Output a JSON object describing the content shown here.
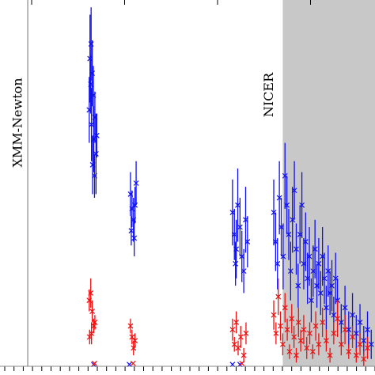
{
  "chart_data": {
    "type": "scatter",
    "title": "",
    "xlabel": "",
    "ylabel": "",
    "xlim": [
      0,
      100
    ],
    "ylim": [
      0,
      100
    ],
    "grid": false,
    "shaded_region": {
      "x_from": 75.4,
      "x_to": 100,
      "color": "#c8c8c8"
    },
    "annotations": [
      {
        "text": "XMM-Newton",
        "x": 4.5,
        "line_x": 7.4
      },
      {
        "text": "NICER",
        "x": 71.5
      }
    ],
    "series": [
      {
        "color": "#1010ee",
        "points": [
          {
            "x": 24.0,
            "y": 84,
            "e": 12
          },
          {
            "x": 24.3,
            "y": 88,
            "e": 10
          },
          {
            "x": 24.6,
            "y": 80,
            "e": 9
          },
          {
            "x": 24.9,
            "y": 74,
            "e": 8
          },
          {
            "x": 23.8,
            "y": 70,
            "e": 9
          },
          {
            "x": 24.4,
            "y": 66,
            "e": 10
          },
          {
            "x": 25.0,
            "y": 62,
            "e": 9
          },
          {
            "x": 25.3,
            "y": 68,
            "e": 7
          },
          {
            "x": 25.6,
            "y": 58,
            "e": 11
          },
          {
            "x": 24.7,
            "y": 55,
            "e": 8
          },
          {
            "x": 25.2,
            "y": 52,
            "e": 6
          },
          {
            "x": 24.2,
            "y": 77,
            "e": 8
          },
          {
            "x": 25.8,
            "y": 63,
            "e": 6
          },
          {
            "x": 34.8,
            "y": 47,
            "e": 6
          },
          {
            "x": 35.2,
            "y": 43,
            "e": 5
          },
          {
            "x": 35.6,
            "y": 40,
            "e": 6
          },
          {
            "x": 36.0,
            "y": 44,
            "e": 5
          },
          {
            "x": 35.0,
            "y": 37,
            "e": 4
          },
          {
            "x": 36.3,
            "y": 50,
            "e": 6
          },
          {
            "x": 35.8,
            "y": 35,
            "e": 5
          },
          {
            "x": 62.0,
            "y": 42,
            "e": 9
          },
          {
            "x": 62.5,
            "y": 36,
            "e": 7
          },
          {
            "x": 63.0,
            "y": 32,
            "e": 8
          },
          {
            "x": 63.4,
            "y": 44,
            "e": 10
          },
          {
            "x": 64.0,
            "y": 38,
            "e": 8
          },
          {
            "x": 64.5,
            "y": 30,
            "e": 7
          },
          {
            "x": 65.0,
            "y": 26,
            "e": 6
          },
          {
            "x": 65.5,
            "y": 40,
            "e": 9
          },
          {
            "x": 66.0,
            "y": 34,
            "e": 7
          },
          {
            "x": 62.8,
            "y": 28,
            "e": 6
          },
          {
            "x": 73.0,
            "y": 42,
            "e": 9
          },
          {
            "x": 73.5,
            "y": 34,
            "e": 8
          },
          {
            "x": 74.0,
            "y": 28,
            "e": 7
          },
          {
            "x": 74.5,
            "y": 46,
            "e": 10
          },
          {
            "x": 75.0,
            "y": 38,
            "e": 8
          },
          {
            "x": 75.5,
            "y": 30,
            "e": 9
          },
          {
            "x": 76.0,
            "y": 52,
            "e": 9
          },
          {
            "x": 76.5,
            "y": 44,
            "e": 8
          },
          {
            "x": 77.0,
            "y": 36,
            "e": 7
          },
          {
            "x": 77.5,
            "y": 26,
            "e": 8
          },
          {
            "x": 78.0,
            "y": 40,
            "e": 9
          },
          {
            "x": 78.5,
            "y": 48,
            "e": 8
          },
          {
            "x": 79.0,
            "y": 32,
            "e": 7
          },
          {
            "x": 79.5,
            "y": 22,
            "e": 6
          },
          {
            "x": 80.0,
            "y": 36,
            "e": 8
          },
          {
            "x": 80.5,
            "y": 44,
            "e": 9
          },
          {
            "x": 81.0,
            "y": 28,
            "e": 7
          },
          {
            "x": 81.5,
            "y": 34,
            "e": 8
          },
          {
            "x": 82.0,
            "y": 24,
            "e": 7
          },
          {
            "x": 82.5,
            "y": 30,
            "e": 8
          },
          {
            "x": 83.0,
            "y": 18,
            "e": 6
          },
          {
            "x": 83.5,
            "y": 26,
            "e": 7
          },
          {
            "x": 84.0,
            "y": 32,
            "e": 8
          },
          {
            "x": 84.5,
            "y": 22,
            "e": 6
          },
          {
            "x": 85.0,
            "y": 28,
            "e": 7
          },
          {
            "x": 85.5,
            "y": 20,
            "e": 6
          },
          {
            "x": 86.0,
            "y": 30,
            "e": 8
          },
          {
            "x": 86.5,
            "y": 24,
            "e": 7
          },
          {
            "x": 87.0,
            "y": 16,
            "e": 6
          },
          {
            "x": 87.5,
            "y": 26,
            "e": 7
          },
          {
            "x": 88.0,
            "y": 20,
            "e": 6
          },
          {
            "x": 88.5,
            "y": 22,
            "e": 7
          },
          {
            "x": 89.0,
            "y": 14,
            "e": 5
          },
          {
            "x": 89.5,
            "y": 24,
            "e": 7
          },
          {
            "x": 90.0,
            "y": 18,
            "e": 6
          },
          {
            "x": 91.0,
            "y": 12,
            "e": 5
          },
          {
            "x": 92.0,
            "y": 16,
            "e": 6
          },
          {
            "x": 93.0,
            "y": 10,
            "e": 5
          },
          {
            "x": 94.0,
            "y": 14,
            "e": 6
          },
          {
            "x": 95.0,
            "y": 9,
            "e": 5
          },
          {
            "x": 96.0,
            "y": 12,
            "e": 5
          },
          {
            "x": 97.0,
            "y": 7,
            "e": 4
          },
          {
            "x": 98.0,
            "y": 10,
            "e": 5
          },
          {
            "x": 99.0,
            "y": 6,
            "e": 4
          },
          {
            "x": 25.0,
            "y": 0.5,
            "e": 0
          },
          {
            "x": 34.5,
            "y": 0.5,
            "e": 0
          },
          {
            "x": 62.0,
            "y": 0.5,
            "e": 0
          },
          {
            "x": 64.0,
            "y": 0.5,
            "e": 0
          }
        ]
      },
      {
        "color": "#ee1010",
        "points": [
          {
            "x": 23.8,
            "y": 18,
            "e": 3
          },
          {
            "x": 24.2,
            "y": 20,
            "e": 4
          },
          {
            "x": 24.6,
            "y": 15,
            "e": 3
          },
          {
            "x": 25.0,
            "y": 11,
            "e": 2
          },
          {
            "x": 23.9,
            "y": 8,
            "e": 2
          },
          {
            "x": 24.4,
            "y": 9,
            "e": 3
          },
          {
            "x": 25.3,
            "y": 12,
            "e": 2
          },
          {
            "x": 34.8,
            "y": 11,
            "e": 2
          },
          {
            "x": 35.2,
            "y": 8,
            "e": 2
          },
          {
            "x": 35.6,
            "y": 5,
            "e": 2
          },
          {
            "x": 36.0,
            "y": 7,
            "e": 2
          },
          {
            "x": 62.0,
            "y": 10,
            "e": 3
          },
          {
            "x": 62.5,
            "y": 6,
            "e": 2
          },
          {
            "x": 63.0,
            "y": 12,
            "e": 3
          },
          {
            "x": 63.5,
            "y": 5,
            "e": 2
          },
          {
            "x": 64.2,
            "y": 8,
            "e": 3
          },
          {
            "x": 65.0,
            "y": 3,
            "e": 2
          },
          {
            "x": 65.6,
            "y": 9,
            "e": 3
          },
          {
            "x": 73.0,
            "y": 14,
            "e": 4
          },
          {
            "x": 73.6,
            "y": 9,
            "e": 3
          },
          {
            "x": 74.2,
            "y": 19,
            "e": 5
          },
          {
            "x": 74.8,
            "y": 11,
            "e": 4
          },
          {
            "x": 75.4,
            "y": 6,
            "e": 3
          },
          {
            "x": 76.0,
            "y": 16,
            "e": 4
          },
          {
            "x": 76.6,
            "y": 10,
            "e": 3
          },
          {
            "x": 77.2,
            "y": 4,
            "e": 2
          },
          {
            "x": 77.8,
            "y": 13,
            "e": 4
          },
          {
            "x": 78.4,
            "y": 8,
            "e": 3
          },
          {
            "x": 79.0,
            "y": 3,
            "e": 2
          },
          {
            "x": 79.6,
            "y": 12,
            "e": 4
          },
          {
            "x": 80.2,
            "y": 7,
            "e": 3
          },
          {
            "x": 81.0,
            "y": 10,
            "e": 4
          },
          {
            "x": 81.8,
            "y": 5,
            "e": 3
          },
          {
            "x": 82.6,
            "y": 9,
            "e": 3
          },
          {
            "x": 83.4,
            "y": 4,
            "e": 2
          },
          {
            "x": 84.2,
            "y": 11,
            "e": 4
          },
          {
            "x": 85.0,
            "y": 6,
            "e": 3
          },
          {
            "x": 86.0,
            "y": 12,
            "e": 4
          },
          {
            "x": 87.0,
            "y": 7,
            "e": 3
          },
          {
            "x": 88.0,
            "y": 3,
            "e": 2
          },
          {
            "x": 89.0,
            "y": 9,
            "e": 3
          },
          {
            "x": 90.0,
            "y": 13,
            "e": 5
          },
          {
            "x": 91.0,
            "y": 6,
            "e": 3
          },
          {
            "x": 92.0,
            "y": 10,
            "e": 4
          },
          {
            "x": 93.0,
            "y": 4,
            "e": 2
          },
          {
            "x": 94.0,
            "y": 8,
            "e": 3
          },
          {
            "x": 95.0,
            "y": 3,
            "e": 2
          },
          {
            "x": 96.0,
            "y": 6,
            "e": 3
          },
          {
            "x": 97.0,
            "y": 2,
            "e": 2
          },
          {
            "x": 98.0,
            "y": 5,
            "e": 3
          },
          {
            "x": 25.2,
            "y": 0.8,
            "e": 0
          },
          {
            "x": 35.5,
            "y": 0.8,
            "e": 0
          },
          {
            "x": 64.5,
            "y": 0.8,
            "e": 0
          }
        ]
      }
    ]
  }
}
